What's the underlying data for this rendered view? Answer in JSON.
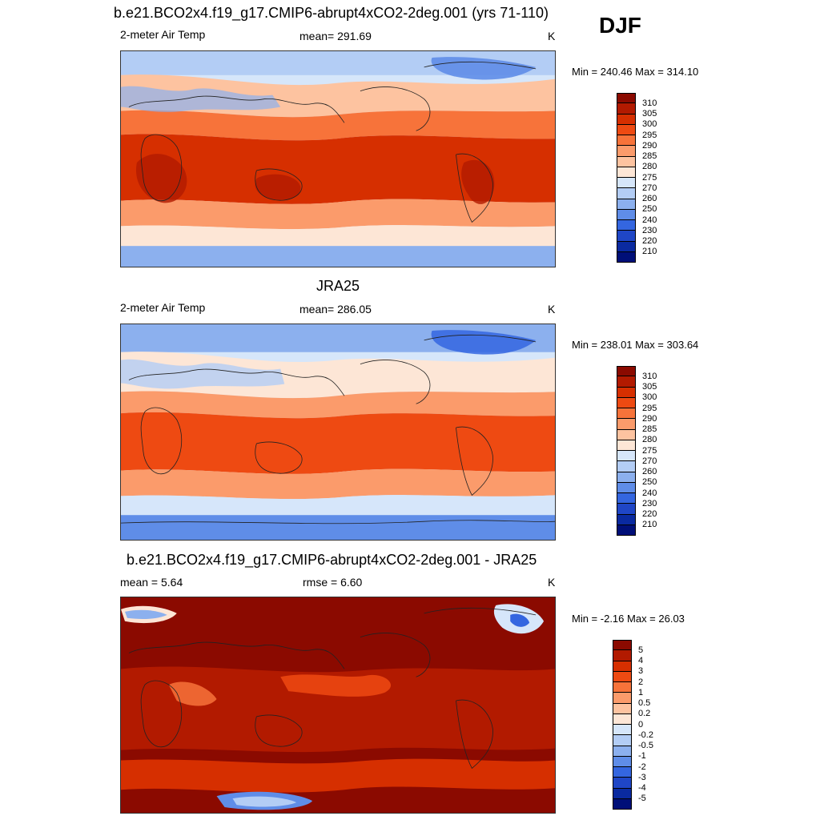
{
  "season": "DJF",
  "panels": [
    {
      "title": "b.e21.BCO2x4.f19_g17.CMIP6-abrupt4xCO2-2deg.001 (yrs 71-110)",
      "left_label": "2-meter Air Temp",
      "center_label": "mean= 291.69",
      "units": "K",
      "minmax": "Min = 240.46 Max = 314.10",
      "colorbar": {
        "levels": [
          "310",
          "305",
          "300",
          "295",
          "290",
          "285",
          "280",
          "275",
          "270",
          "260",
          "250",
          "240",
          "230",
          "220",
          "210"
        ],
        "colors": [
          "#8b0a00",
          "#b21a00",
          "#d62f00",
          "#ee4a12",
          "#f7733a",
          "#fb9b6b",
          "#fdc3a0",
          "#fde6d6",
          "#d6e6fa",
          "#b3cdf5",
          "#8cb0ee",
          "#5f8de8",
          "#3466e0",
          "#1f46c6",
          "#0a2aa0",
          "#000f78"
        ]
      }
    },
    {
      "title": "JRA25",
      "left_label": "2-meter Air Temp",
      "center_label": "mean= 286.05",
      "units": "K",
      "minmax": "Min = 238.01 Max = 303.64",
      "colorbar": {
        "levels": [
          "310",
          "305",
          "300",
          "295",
          "290",
          "285",
          "280",
          "275",
          "270",
          "260",
          "250",
          "240",
          "230",
          "220",
          "210"
        ],
        "colors": [
          "#8b0a00",
          "#b21a00",
          "#d62f00",
          "#ee4a12",
          "#f7733a",
          "#fb9b6b",
          "#fdc3a0",
          "#fde6d6",
          "#d6e6fa",
          "#b3cdf5",
          "#8cb0ee",
          "#5f8de8",
          "#3466e0",
          "#1f46c6",
          "#0a2aa0",
          "#000f78"
        ]
      }
    },
    {
      "title": "b.e21.BCO2x4.f19_g17.CMIP6-abrupt4xCO2-2deg.001 - JRA25",
      "left_label": "mean =   5.64",
      "center_label": "rmse =   6.60",
      "units": "K",
      "minmax": "Min =  -2.16 Max =  26.03",
      "colorbar": {
        "levels": [
          "5",
          "4",
          "3",
          "2",
          "1",
          "0.5",
          "0.2",
          "0",
          "-0.2",
          "-0.5",
          "-1",
          "-2",
          "-3",
          "-4",
          "-5"
        ],
        "colors": [
          "#8b0a00",
          "#b21a00",
          "#d62f00",
          "#ee4a12",
          "#f7733a",
          "#fb9b6b",
          "#fdc3a0",
          "#fde6d6",
          "#d6e6fa",
          "#b3cdf5",
          "#8cb0ee",
          "#5f8de8",
          "#3466e0",
          "#1f46c6",
          "#0a2aa0",
          "#000f78"
        ]
      }
    }
  ]
}
